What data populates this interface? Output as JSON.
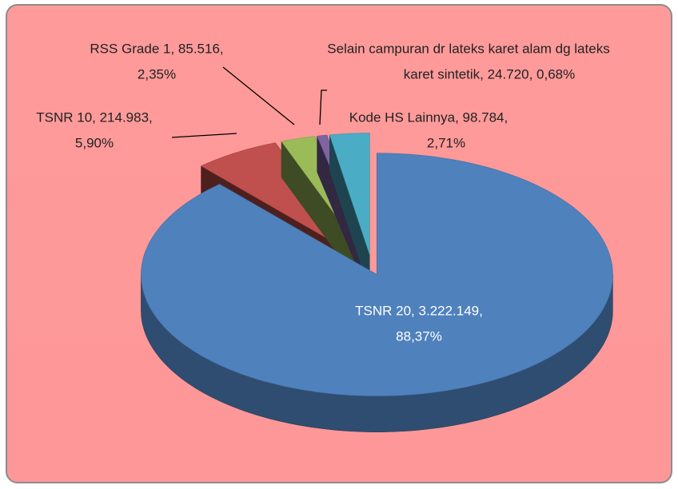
{
  "chart_data": {
    "type": "pie3d",
    "values": [
      3222149,
      214983,
      85516,
      24720,
      98784
    ],
    "value_labels": [
      [
        "TSNR 20, 3.222.149,",
        "88,37%"
      ],
      [
        "TSNR 10, 214.983,",
        "5,90%"
      ],
      [
        "RSS Grade 1, 85.516,",
        "2,35%"
      ],
      [
        "Selain campuran dr lateks karet alam dg lateks",
        "karet sintetik, 24.720, 0,68%"
      ],
      [
        "Kode HS Lainnya, 98.784,",
        "2,71%"
      ]
    ],
    "colors": [
      "#4f81bd",
      "#c0504d",
      "#9bbb59",
      "#8064a2",
      "#4bacc6"
    ]
  }
}
